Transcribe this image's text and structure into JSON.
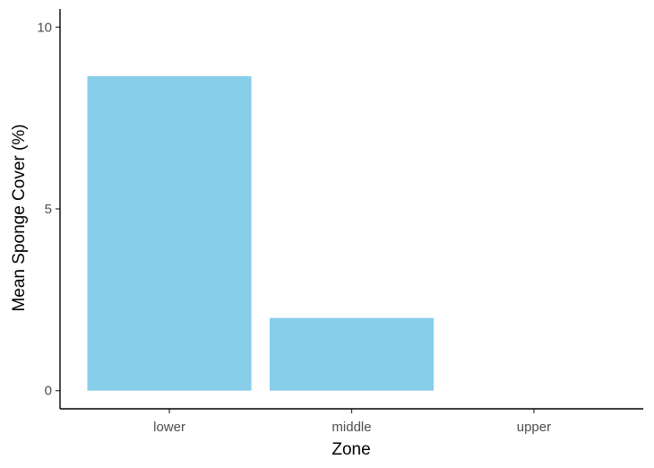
{
  "chart_data": {
    "type": "bar",
    "title": "",
    "xlabel": "Zone",
    "ylabel": "Mean Sponge Cover (%)",
    "categories": [
      "lower",
      "middle",
      "upper"
    ],
    "values": [
      8.65,
      2.0,
      0.0
    ],
    "ylim": [
      -0.5,
      10.5
    ],
    "yticks": [
      0,
      5,
      10
    ],
    "grid": false,
    "legend": "none",
    "bar_color": "#87CEEB"
  }
}
